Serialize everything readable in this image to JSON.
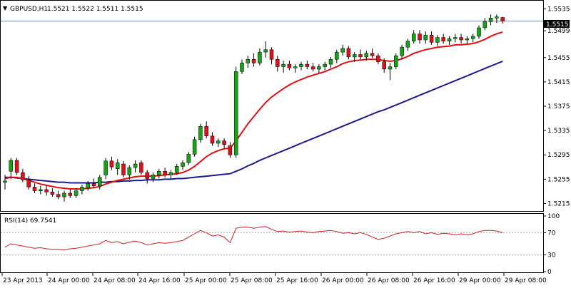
{
  "header": {
    "symbol": "GBPUSD,H1",
    "ohlc": "1.5521 1.5522 1.5511 1.5515",
    "arrow": "▼"
  },
  "rsi_header": "RSI(14) 69.7541",
  "price_axis": [
    "1.5535",
    "1.5499",
    "1.5455",
    "1.5415",
    "1.5375",
    "1.5335",
    "1.5295",
    "1.5255",
    "1.5215"
  ],
  "current_price": "1.5515",
  "rsi_axis": [
    "100",
    "70",
    "30",
    "0"
  ],
  "time_axis": [
    "23 Apr 2013",
    "24 Apr 00:00",
    "24 Apr 08:00",
    "24 Apr 16:00",
    "25 Apr 00:00",
    "25 Apr 08:00",
    "25 Apr 16:00",
    "26 Apr 00:00",
    "26 Apr 08:00",
    "26 Apr 16:00",
    "29 Apr 00:00",
    "29 Apr 08:00"
  ],
  "colors": {
    "bull": "#16a316",
    "bear": "#e0101a",
    "ma_fast": "#e01010",
    "ma_slow": "#1a1a8c",
    "rsi": "#cc2020",
    "grid_dash": "#b0b0b0",
    "current_line": "#6a8fb0"
  },
  "chart_data": [
    {
      "type": "candlestick",
      "title": "GBPUSD,H1",
      "ylim": [
        1.5205,
        1.5545
      ],
      "candles": [
        [
          1.525,
          1.5262,
          1.5238,
          1.5252
        ],
        [
          1.5268,
          1.529,
          1.5255,
          1.5286
        ],
        [
          1.5286,
          1.529,
          1.5262,
          1.5266
        ],
        [
          1.5266,
          1.5272,
          1.525,
          1.5254
        ],
        [
          1.5254,
          1.526,
          1.5238,
          1.5242
        ],
        [
          1.5242,
          1.5248,
          1.5232,
          1.5236
        ],
        [
          1.5236,
          1.5244,
          1.523,
          1.5238
        ],
        [
          1.5238,
          1.5245,
          1.5228,
          1.5234
        ],
        [
          1.5234,
          1.524,
          1.5226,
          1.523
        ],
        [
          1.523,
          1.5236,
          1.5222,
          1.5226
        ],
        [
          1.5226,
          1.5236,
          1.5218,
          1.5232
        ],
        [
          1.5232,
          1.5238,
          1.5224,
          1.5228
        ],
        [
          1.5228,
          1.524,
          1.5224,
          1.5236
        ],
        [
          1.5236,
          1.5246,
          1.523,
          1.5242
        ],
        [
          1.524,
          1.5252,
          1.5236,
          1.5248
        ],
        [
          1.5248,
          1.5256,
          1.524,
          1.5244
        ],
        [
          1.5244,
          1.5262,
          1.5238,
          1.5258
        ],
        [
          1.5262,
          1.529,
          1.5255,
          1.5285
        ],
        [
          1.5285,
          1.5292,
          1.527,
          1.5275
        ],
        [
          1.5272,
          1.5288,
          1.5262,
          1.5282
        ],
        [
          1.528,
          1.5285,
          1.5258,
          1.5262
        ],
        [
          1.5262,
          1.5278,
          1.5254,
          1.5274
        ],
        [
          1.5274,
          1.5286,
          1.5266,
          1.528
        ],
        [
          1.5282,
          1.5286,
          1.5262,
          1.5266
        ],
        [
          1.5266,
          1.527,
          1.5248,
          1.5256
        ],
        [
          1.5256,
          1.5266,
          1.525,
          1.5262
        ],
        [
          1.5262,
          1.5272,
          1.5256,
          1.5268
        ],
        [
          1.5268,
          1.5274,
          1.5258,
          1.5262
        ],
        [
          1.5262,
          1.527,
          1.5256,
          1.5266
        ],
        [
          1.5266,
          1.528,
          1.5262,
          1.5276
        ],
        [
          1.5276,
          1.5286,
          1.527,
          1.5282
        ],
        [
          1.5282,
          1.53,
          1.5278,
          1.5296
        ],
        [
          1.5296,
          1.5325,
          1.5292,
          1.532
        ],
        [
          1.532,
          1.5346,
          1.5315,
          1.5342
        ],
        [
          1.5342,
          1.535,
          1.5322,
          1.5326
        ],
        [
          1.5326,
          1.5332,
          1.531,
          1.5314
        ],
        [
          1.5314,
          1.5322,
          1.5308,
          1.5318
        ],
        [
          1.5318,
          1.5322,
          1.5305,
          1.5312
        ],
        [
          1.531,
          1.5316,
          1.529,
          1.5295
        ],
        [
          1.5295,
          1.544,
          1.529,
          1.5432
        ],
        [
          1.5432,
          1.5452,
          1.5428,
          1.5446
        ],
        [
          1.5446,
          1.5458,
          1.5438,
          1.5452
        ],
        [
          1.5452,
          1.5462,
          1.544,
          1.5446
        ],
        [
          1.5446,
          1.547,
          1.5442,
          1.5464
        ],
        [
          1.5464,
          1.5482,
          1.5455,
          1.5468
        ],
        [
          1.5468,
          1.5472,
          1.5444,
          1.5452
        ],
        [
          1.5452,
          1.5458,
          1.5432,
          1.544
        ],
        [
          1.544,
          1.545,
          1.543,
          1.5444
        ],
        [
          1.5444,
          1.545,
          1.5434,
          1.5438
        ],
        [
          1.5438,
          1.5444,
          1.543,
          1.544
        ],
        [
          1.544,
          1.5448,
          1.5434,
          1.5444
        ],
        [
          1.5444,
          1.545,
          1.5436,
          1.544
        ],
        [
          1.544,
          1.5446,
          1.5432,
          1.5436
        ],
        [
          1.5436,
          1.5444,
          1.543,
          1.544
        ],
        [
          1.544,
          1.5448,
          1.5434,
          1.5444
        ],
        [
          1.5444,
          1.5456,
          1.5438,
          1.5452
        ],
        [
          1.5452,
          1.5468,
          1.5446,
          1.5464
        ],
        [
          1.5464,
          1.5476,
          1.5458,
          1.547
        ],
        [
          1.547,
          1.5474,
          1.5452,
          1.5456
        ],
        [
          1.5456,
          1.5464,
          1.5448,
          1.546
        ],
        [
          1.546,
          1.5468,
          1.5452,
          1.5456
        ],
        [
          1.5456,
          1.5466,
          1.545,
          1.5462
        ],
        [
          1.5462,
          1.547,
          1.5454,
          1.5458
        ],
        [
          1.5458,
          1.5462,
          1.5444,
          1.5448
        ],
        [
          1.5448,
          1.5454,
          1.543,
          1.5436
        ],
        [
          1.5436,
          1.5446,
          1.5418,
          1.544
        ],
        [
          1.544,
          1.5462,
          1.5436,
          1.5458
        ],
        [
          1.5458,
          1.5476,
          1.5452,
          1.5472
        ],
        [
          1.5472,
          1.5486,
          1.5466,
          1.5482
        ],
        [
          1.5482,
          1.55,
          1.5478,
          1.5494
        ],
        [
          1.5494,
          1.55,
          1.5478,
          1.5484
        ],
        [
          1.5484,
          1.5498,
          1.5478,
          1.5492
        ],
        [
          1.5492,
          1.5498,
          1.5476,
          1.548
        ],
        [
          1.548,
          1.5492,
          1.5474,
          1.5488
        ],
        [
          1.5488,
          1.5494,
          1.5478,
          1.5482
        ],
        [
          1.5482,
          1.549,
          1.5476,
          1.5486
        ],
        [
          1.5486,
          1.5494,
          1.548,
          1.5488
        ],
        [
          1.5488,
          1.5494,
          1.5478,
          1.5484
        ],
        [
          1.5484,
          1.549,
          1.5478,
          1.5486
        ],
        [
          1.5486,
          1.5494,
          1.548,
          1.549
        ],
        [
          1.549,
          1.5508,
          1.5486,
          1.5504
        ],
        [
          1.5504,
          1.552,
          1.55,
          1.5514
        ],
        [
          1.5514,
          1.5526,
          1.5508,
          1.552
        ],
        [
          1.552,
          1.5526,
          1.5512,
          1.5522
        ],
        [
          1.5521,
          1.5522,
          1.5511,
          1.5515
        ]
      ],
      "ma_fast": [
        1.5256,
        1.5258,
        1.5258,
        1.5256,
        1.5253,
        1.525,
        1.5247,
        1.5245,
        1.5243,
        1.5241,
        1.524,
        1.5239,
        1.5239,
        1.5239,
        1.524,
        1.5241,
        1.5243,
        1.5247,
        1.525,
        1.5253,
        1.5255,
        1.5257,
        1.5259,
        1.526,
        1.526,
        1.526,
        1.5261,
        1.5262,
        1.5263,
        1.5264,
        1.5266,
        1.527,
        1.5276,
        1.5284,
        1.5292,
        1.5298,
        1.5302,
        1.5305,
        1.5306,
        1.5318,
        1.5332,
        1.5346,
        1.5358,
        1.537,
        1.5381,
        1.539,
        1.5397,
        1.5404,
        1.541,
        1.5415,
        1.5419,
        1.5423,
        1.5426,
        1.5429,
        1.5432,
        1.5436,
        1.544,
        1.5445,
        1.5448,
        1.545,
        1.5451,
        1.5452,
        1.5452,
        1.5452,
        1.545,
        1.5449,
        1.545,
        1.5453,
        1.5457,
        1.5462,
        1.5465,
        1.5468,
        1.547,
        1.5472,
        1.5473,
        1.5474,
        1.5476,
        1.5476,
        1.5477,
        1.5478,
        1.5481,
        1.5485,
        1.549,
        1.5494,
        1.5497
      ],
      "ma_slow": [
        1.5258,
        1.5258,
        1.5257,
        1.5256,
        1.5255,
        1.5254,
        1.5253,
        1.5252,
        1.5251,
        1.525,
        1.525,
        1.5249,
        1.5249,
        1.5249,
        1.5249,
        1.5249,
        1.525,
        1.525,
        1.5251,
        1.5251,
        1.5252,
        1.5252,
        1.5253,
        1.5253,
        1.5254,
        1.5254,
        1.5254,
        1.5255,
        1.5255,
        1.5256,
        1.5256,
        1.5257,
        1.5258,
        1.5259,
        1.526,
        1.5261,
        1.5262,
        1.5263,
        1.5264,
        1.5268,
        1.5272,
        1.5277,
        1.5281,
        1.5286,
        1.529,
        1.5294,
        1.5298,
        1.5302,
        1.5306,
        1.531,
        1.5314,
        1.5318,
        1.5322,
        1.5326,
        1.533,
        1.5334,
        1.5338,
        1.5342,
        1.5346,
        1.535,
        1.5354,
        1.5358,
        1.5362,
        1.5366,
        1.5369,
        1.5373,
        1.5377,
        1.5381,
        1.5385,
        1.5389,
        1.5393,
        1.5397,
        1.5401,
        1.5405,
        1.5409,
        1.5413,
        1.5417,
        1.5421,
        1.5425,
        1.5429,
        1.5433,
        1.5437,
        1.5441,
        1.5445,
        1.5449
      ]
    },
    {
      "type": "line",
      "title": "RSI(14) 69.7541",
      "ylim": [
        0,
        100
      ],
      "reference_levels": [
        70,
        30
      ],
      "values": [
        44,
        50,
        48,
        46,
        44,
        42,
        43,
        41,
        40,
        40,
        39,
        41,
        42,
        44,
        46,
        48,
        50,
        56,
        52,
        54,
        50,
        53,
        55,
        52,
        48,
        50,
        52,
        51,
        52,
        54,
        56,
        62,
        68,
        74,
        70,
        64,
        66,
        62,
        52,
        78,
        80,
        80,
        78,
        80,
        81,
        76,
        72,
        73,
        71,
        72,
        73,
        71,
        70,
        72,
        73,
        74,
        72,
        69,
        70,
        68,
        70,
        67,
        62,
        58,
        60,
        64,
        68,
        70,
        72,
        70,
        72,
        68,
        70,
        67,
        69,
        68,
        66,
        68,
        66,
        68,
        72,
        74,
        74,
        73,
        70
      ]
    }
  ]
}
